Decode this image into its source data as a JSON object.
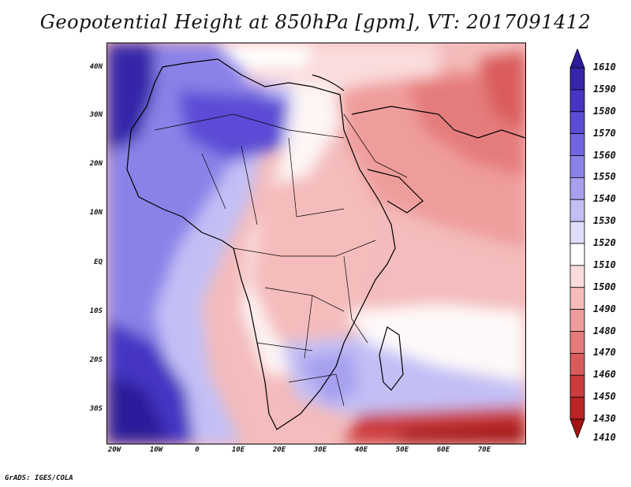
{
  "title": "Geopotential Height at 850hPa [gpm], VT: 2017091412",
  "credit": "GrADS: IGES/COLA",
  "lat_labels": [
    "40N",
    "30N",
    "20N",
    "10N",
    "EQ",
    "10S",
    "20S",
    "30S"
  ],
  "lon_labels": [
    "20W",
    "10W",
    "0",
    "10E",
    "20E",
    "30E",
    "40E",
    "50E",
    "60E",
    "70E"
  ],
  "colorbar": {
    "levels": [
      "1610",
      "1590",
      "1580",
      "1570",
      "1560",
      "1550",
      "1540",
      "1530",
      "1520",
      "1510",
      "1500",
      "1490",
      "1480",
      "1470",
      "1460",
      "1450",
      "1430",
      "1410"
    ],
    "colors": [
      "#2a1c9a",
      "#3526a9",
      "#4535c2",
      "#5b4cd6",
      "#7266e0",
      "#8b82e8",
      "#a6a0ef",
      "#c3bff5",
      "#e0defb",
      "#ffffff",
      "#fbdcdc",
      "#f5bcbc",
      "#ef9c9c",
      "#e57b7b",
      "#da5b5b",
      "#cc3c3c",
      "#bb2424",
      "#a51414"
    ]
  }
}
